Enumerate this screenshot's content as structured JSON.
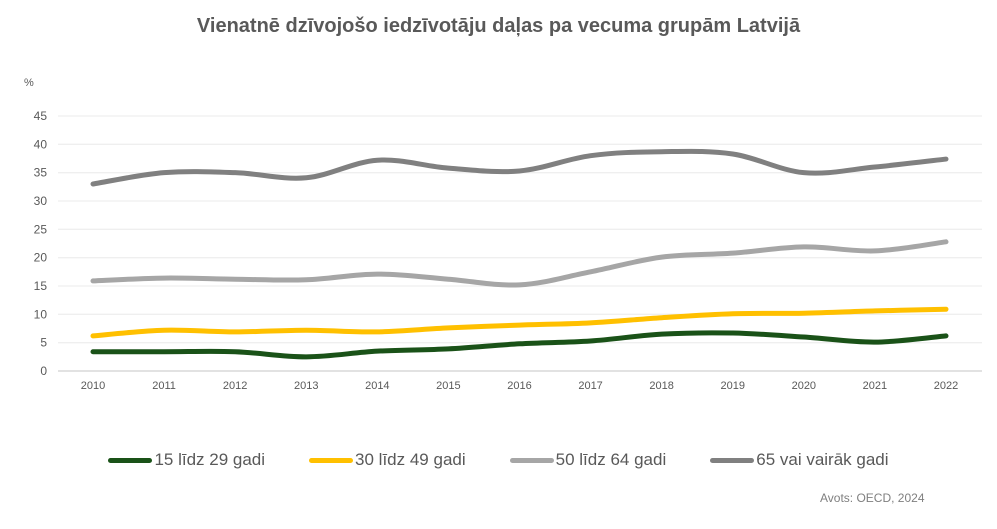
{
  "chart_data": {
    "type": "line",
    "title": "Vienatnē dzīvojošo iedzīvotāju daļas pa vecuma grupām Latvijā",
    "ylabel": "%",
    "xlabel": "",
    "ylim": [
      0,
      45
    ],
    "yticks": [
      "0",
      "5",
      "10",
      "15",
      "20",
      "25",
      "30",
      "35",
      "40",
      "45"
    ],
    "ytick_values": [
      0,
      5,
      10,
      15,
      20,
      25,
      30,
      35,
      40,
      45
    ],
    "categories": [
      "2010",
      "2011",
      "2012",
      "2013",
      "2014",
      "2015",
      "2016",
      "2017",
      "2018",
      "2019",
      "2020",
      "2021",
      "2022"
    ],
    "grid": true,
    "smooth": true,
    "legend_position": "bottom",
    "series": [
      {
        "name": "15 līdz 29 gadi",
        "color": "#1a5218",
        "values": [
          3.4,
          3.4,
          3.4,
          2.5,
          3.5,
          3.9,
          4.8,
          5.3,
          6.5,
          6.7,
          6.0,
          5.1,
          6.2
        ]
      },
      {
        "name": "30 līdz 49 gadi",
        "color": "#ffc000",
        "values": [
          6.2,
          7.2,
          6.9,
          7.2,
          6.9,
          7.6,
          8.1,
          8.5,
          9.4,
          10.1,
          10.2,
          10.6,
          10.9
        ]
      },
      {
        "name": "50 līdz 64 gadi",
        "color": "#a6a6a6",
        "values": [
          15.9,
          16.4,
          16.2,
          16.1,
          17.1,
          16.2,
          15.2,
          17.5,
          20.1,
          20.8,
          21.9,
          21.2,
          22.8
        ]
      },
      {
        "name": "65 vai vairāk gadi",
        "color": "#808080",
        "values": [
          33.0,
          35.0,
          35.0,
          34.1,
          37.2,
          35.8,
          35.3,
          38.0,
          38.7,
          38.3,
          35.0,
          36.0,
          37.4
        ]
      }
    ],
    "source": "Avots: OECD, 2024"
  }
}
